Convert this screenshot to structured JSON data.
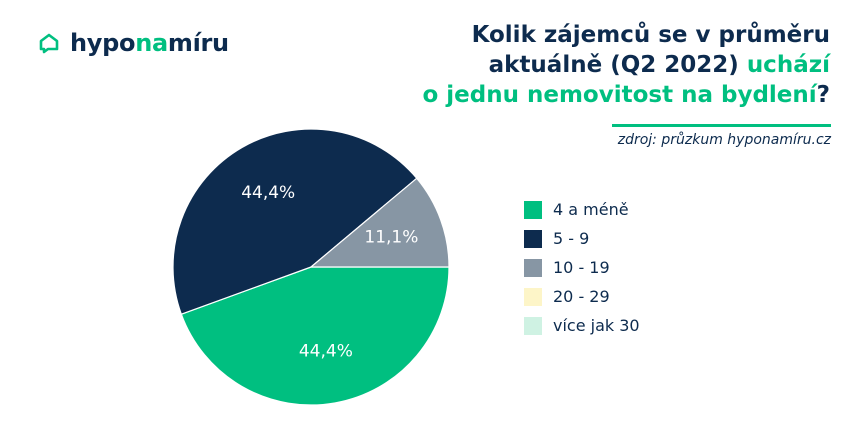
{
  "brand": {
    "part1": "hypo",
    "part2": "na",
    "part3": "míru",
    "icon": "home-chat-icon"
  },
  "headline": {
    "line1": "Kolik zájemců se v průměru",
    "line2_a": "aktuálně (Q2 2022)",
    "line2_b": "uchází",
    "line3_a": "o jednu nemovitost na bydlení",
    "line3_b": "?"
  },
  "source": "zdroj: průzkum hyponamíru.cz",
  "colors": {
    "green": "#00bf80",
    "navy": "#0d2b4e",
    "gray": "#8796a4",
    "yellow": "#fdf5c8",
    "mint": "#cff2e3"
  },
  "chart_data": {
    "type": "pie",
    "title": "Kolik zájemců se v průměru aktuálně (Q2 2022) uchází o jednu nemovitost na bydlení?",
    "legend_position": "right",
    "categories": [
      "4 a méně",
      "5 - 9",
      "10 - 19",
      "20 - 29",
      "více jak 30"
    ],
    "values": [
      44.4,
      44.4,
      11.1,
      0,
      0
    ],
    "labels": [
      "44,4%",
      "44,4%",
      "11,1%",
      "",
      ""
    ],
    "colors": [
      "#00bf80",
      "#0d2b4e",
      "#8796a4",
      "#fdf5c8",
      "#cff2e3"
    ],
    "label_colors": [
      "#ffffff",
      "#ffffff",
      "#ffffff",
      "#0d2b4e",
      "#0d2b4e"
    ]
  }
}
